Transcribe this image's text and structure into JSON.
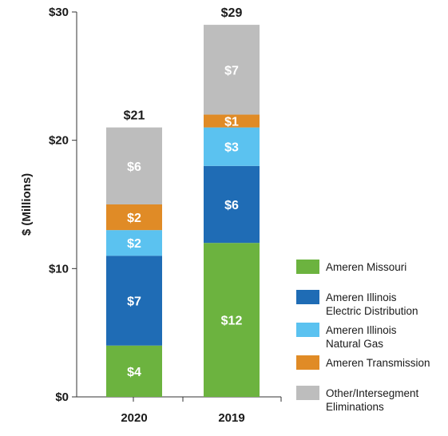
{
  "chart_data": {
    "type": "bar",
    "stacked": true,
    "title": "",
    "ylabel": "$ (Millions)",
    "xlabel": "",
    "categories": [
      "2020",
      "2019"
    ],
    "ylim": [
      0,
      30
    ],
    "yticks": [
      0,
      10,
      20,
      30
    ],
    "ytick_labels": [
      "$0",
      "$10",
      "$20",
      "$30"
    ],
    "series": [
      {
        "name": "Ameren Missouri",
        "color": "#6cb33f",
        "values": [
          4,
          12
        ],
        "labels": [
          "$4",
          "$12"
        ],
        "legend_lines": [
          "Ameren Missouri"
        ]
      },
      {
        "name": "Ameren Illinois Electric Distribution",
        "color": "#1f6cb5",
        "values": [
          7,
          6
        ],
        "labels": [
          "$7",
          "$6"
        ],
        "legend_lines": [
          "Ameren Illinois",
          "Electric Distribution"
        ]
      },
      {
        "name": "Ameren Illinois Natural Gas",
        "color": "#5bc2f0",
        "values": [
          2,
          3
        ],
        "labels": [
          "$2",
          "$3"
        ],
        "legend_lines": [
          "Ameren Illinois",
          "Natural Gas"
        ]
      },
      {
        "name": "Ameren Transmission",
        "color": "#e08b26",
        "values": [
          2,
          1
        ],
        "labels": [
          "$2",
          "$1"
        ],
        "legend_lines": [
          "Ameren Transmission"
        ]
      },
      {
        "name": "Other/Intersegment Eliminations",
        "color": "#bdbdbd",
        "values": [
          6,
          7
        ],
        "labels": [
          "$6",
          "$7"
        ],
        "legend_lines": [
          "Other/Intersegment",
          "Eliminations"
        ]
      }
    ],
    "totals": [
      21,
      29
    ],
    "total_labels": [
      "$21",
      "$29"
    ],
    "legend_position": "right",
    "grid": false
  }
}
